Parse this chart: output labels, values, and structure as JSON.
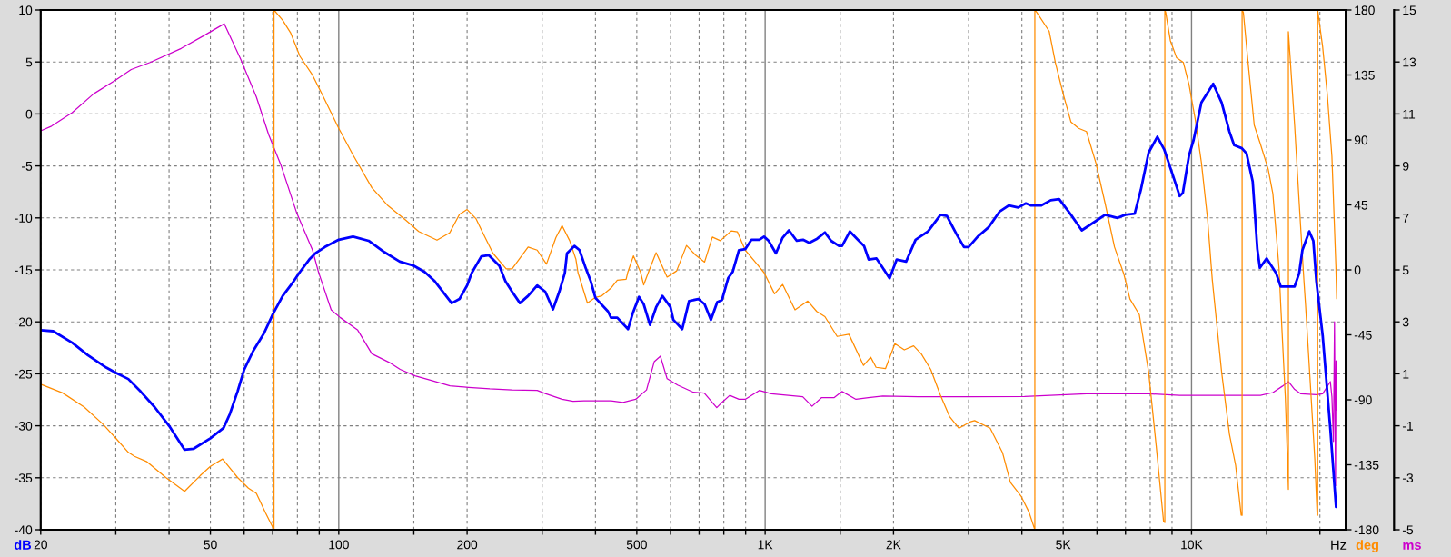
{
  "chart_data": {
    "type": "line",
    "log": "x",
    "grid": true,
    "xlim": [
      20,
      23000
    ],
    "xticks": [
      20,
      {
        "value": 30,
        "label": null
      },
      {
        "value": 40,
        "label": null
      },
      50,
      {
        "value": 60,
        "label": null
      },
      {
        "value": 70,
        "label": null
      },
      {
        "value": 80,
        "label": null
      },
      {
        "value": 90,
        "label": null
      },
      100,
      {
        "value": 150,
        "label": null
      },
      200,
      {
        "value": 300,
        "label": null
      },
      {
        "value": 400,
        "label": null
      },
      500,
      {
        "value": 600,
        "label": null
      },
      {
        "value": 700,
        "label": null
      },
      {
        "value": 800,
        "label": null
      },
      {
        "value": 900,
        "label": null
      },
      {
        "value": 1000,
        "label": "1K"
      },
      {
        "value": 1500,
        "label": null
      },
      {
        "value": 2000,
        "label": "2K"
      },
      {
        "value": 3000,
        "label": null
      },
      {
        "value": 4000,
        "label": null
      },
      {
        "value": 5000,
        "label": "5K"
      },
      {
        "value": 6000,
        "label": null
      },
      {
        "value": 7000,
        "label": null
      },
      {
        "value": 8000,
        "label": null
      },
      {
        "value": 9000,
        "label": null
      },
      {
        "value": 10000,
        "label": "10K"
      },
      {
        "value": 15000,
        "label": null
      },
      {
        "value": 20000,
        "label": null
      }
    ],
    "ylim": [
      -40,
      10
    ],
    "yticks": [
      10,
      5,
      0,
      -5,
      -10,
      -15,
      -20,
      -25,
      -30,
      -35,
      -40
    ],
    "y2lim": [
      -180,
      180
    ],
    "y2ticks": [
      180,
      135,
      90,
      45,
      0,
      -45,
      -90,
      -135,
      -180
    ],
    "y3lim": [
      -5,
      15
    ],
    "y3ticks": [
      15,
      13,
      11,
      9,
      7,
      5,
      3,
      1,
      -1,
      -3,
      -5
    ],
    "xlabel": "Hz",
    "ylabel": "dB",
    "y2label": "deg",
    "y3label": "ms",
    "series": [
      {
        "color": "#0000ff",
        "x": [
          20,
          21.4,
          23.7,
          25.8,
          28.5,
          30,
          32.1,
          34.3,
          37,
          40,
          43.5,
          45.7,
          50,
          53.7,
          55.5,
          57.9,
          60,
          63,
          66.8,
          70,
          73.9,
          78.4,
          81.1,
          85.3,
          88.2,
          92.8,
          100,
          108,
          117.5,
          128,
          139,
          150,
          159,
          168,
          184,
          192,
          200,
          205,
          216,
          225,
          238,
          246,
          255,
          266,
          278,
          292,
          305,
          318,
          329,
          339,
          343,
          357,
          367,
          380,
          390,
          400,
          428,
          435,
          450,
          477,
          489,
          506,
          519,
          537,
          555,
          574,
          600,
          609,
          639,
          663,
          697,
          721,
          746,
          772,
          792,
          819,
          839,
          868,
          898,
          929,
          969,
          994,
          1019,
          1060,
          1099,
          1137,
          1186,
          1227,
          1269,
          1324,
          1381,
          1428,
          1490,
          1515,
          1580,
          1649,
          1706,
          1749,
          1824,
          1887,
          1958,
          2035,
          2141,
          2253,
          2410,
          2578,
          2667,
          2805,
          2926,
          3000,
          3152,
          3342,
          3545,
          3727,
          3920,
          4088,
          4193,
          4445,
          4675,
          4892,
          5215,
          5528,
          5964,
          6270,
          6706,
          6992,
          7355,
          7605,
          7933,
          8314,
          8625,
          9072,
          9379,
          9541,
          9863,
          10113,
          10548,
          11241,
          11765,
          12271,
          12585,
          13121,
          13457,
          13913,
          14266,
          14462,
          15006,
          15785,
          16181,
          17448,
          17887,
          18197,
          18880,
          19300,
          19624,
          20300,
          21160,
          21820
        ],
        "values": [
          -20.8,
          -20.9,
          -22.0,
          -23.2,
          -24.4,
          -24.9,
          -25.5,
          -26.7,
          -28.2,
          -30.0,
          -32.3,
          -32.2,
          -31.2,
          -30.2,
          -28.9,
          -26.7,
          -24.6,
          -22.8,
          -21.1,
          -19.3,
          -17.5,
          -16.1,
          -15.2,
          -14.0,
          -13.4,
          -12.8,
          -12.1,
          -11.8,
          -12.2,
          -13.3,
          -14.2,
          -14.6,
          -15.2,
          -16.1,
          -18.2,
          -17.8,
          -16.5,
          -15.3,
          -13.7,
          -13.6,
          -14.6,
          -16.1,
          -17.1,
          -18.2,
          -17.5,
          -16.5,
          -17.1,
          -18.8,
          -17.1,
          -15.3,
          -13.4,
          -12.7,
          -13.1,
          -14.9,
          -16.1,
          -17.7,
          -19.0,
          -19.6,
          -19.6,
          -20.7,
          -19.2,
          -17.6,
          -18.3,
          -20.3,
          -18.6,
          -17.5,
          -18.6,
          -19.8,
          -20.7,
          -18.0,
          -17.8,
          -18.3,
          -19.8,
          -18.1,
          -17.9,
          -15.8,
          -15.2,
          -13.1,
          -13.0,
          -12.1,
          -12.1,
          -11.8,
          -12.2,
          -13.4,
          -11.9,
          -11.2,
          -12.2,
          -12.1,
          -12.4,
          -12.0,
          -11.4,
          -12.2,
          -12.7,
          -12.7,
          -11.3,
          -12.1,
          -12.7,
          -14.0,
          -13.9,
          -14.8,
          -15.8,
          -14.0,
          -14.2,
          -12.1,
          -11.3,
          -9.7,
          -9.8,
          -11.5,
          -12.8,
          -12.8,
          -11.8,
          -10.9,
          -9.4,
          -8.8,
          -9.0,
          -8.6,
          -8.8,
          -8.8,
          -8.3,
          -8.2,
          -9.7,
          -11.2,
          -10.3,
          -9.7,
          -10.0,
          -9.7,
          -9.6,
          -7.3,
          -3.7,
          -2.2,
          -3.4,
          -6.1,
          -7.9,
          -7.6,
          -4.0,
          -2.5,
          1.1,
          2.9,
          1.1,
          -1.7,
          -3.0,
          -3.3,
          -3.8,
          -6.5,
          -13.0,
          -14.8,
          -13.9,
          -15.3,
          -16.6,
          -16.6,
          -15.3,
          -13.1,
          -11.3,
          -12.2,
          -16.1,
          -21.3,
          -30.3,
          -37.8
        ]
      },
      {
        "color": "#ff8c00",
        "axis": "y2",
        "x": [
          20,
          22.5,
          25.3,
          28,
          30,
          32.1,
          33.2,
          35.5,
          39.3,
          43.5,
          47.3,
          50,
          53.4,
          57.9,
          61.4,
          64.1,
          67.4,
          70.5,
          70.5,
          73.9,
          77.1,
          81.1,
          86.8,
          91.3,
          100,
          108,
          119.6,
          130,
          144,
          154,
          170,
          182,
          192,
          200,
          210,
          215,
          230,
          247,
          255,
          278,
          292,
          307,
          323,
          334,
          348,
          360,
          364,
          383,
          400,
          414,
          435,
          450,
          472,
          476,
          491,
          510,
          519,
          532,
          555,
          589,
          620,
          654,
          686,
          721,
          752,
          785,
          833,
          861,
          898,
          951,
          994,
          1052,
          1099,
          1175,
          1259,
          1321,
          1381,
          1475,
          1572,
          1701,
          1768,
          1820,
          1915,
          2015,
          2120,
          2229,
          2325,
          2446,
          2573,
          2706,
          2848,
          3020,
          3099,
          3371,
          3604,
          3760,
          3987,
          4157,
          4290,
          4290,
          4335,
          4637,
          4793,
          5000,
          5215,
          5436,
          5670,
          5964,
          6270,
          6597,
          6936,
          7171,
          7542,
          7933,
          8268,
          8598,
          8657,
          8657,
          8698,
          8918,
          9224,
          9569,
          9863,
          10198,
          10548,
          10905,
          11187,
          11765,
          12271,
          12688,
          13074,
          13140,
          13140,
          13229,
          13570,
          14027,
          14505,
          15125,
          15516,
          16045,
          16181,
          16595,
          16817,
          16870,
          16870,
          17448,
          17887,
          18350,
          18502,
          18979,
          19456,
          19694,
          19760,
          19760,
          20300,
          20810,
          21340,
          21800,
          21900
        ],
        "values": [
          -79.2,
          -85.2,
          -95.0,
          -106.9,
          -116.6,
          -126.4,
          -129.2,
          -132.9,
          -143.8,
          -153.4,
          -142.6,
          -136.1,
          -131.0,
          -143.8,
          -151.2,
          -154.8,
          -168.5,
          -180,
          180,
          172.8,
          164.2,
          147.9,
          134.9,
          121.9,
          98.0,
          79.6,
          56.9,
          44.9,
          34.1,
          26.6,
          20.6,
          25.6,
          38.5,
          41.8,
          35.3,
          28.9,
          11.5,
          0.7,
          0.7,
          15.8,
          13.7,
          4.0,
          22.3,
          30.6,
          20.2,
          7.2,
          -1.9,
          -23.0,
          -19.1,
          -18.0,
          -12.6,
          -7.2,
          -6.5,
          -1.9,
          9.7,
          -1.4,
          -10.4,
          -1.9,
          11.9,
          -5.0,
          -0.7,
          16.9,
          10.4,
          5.4,
          22.7,
          20.2,
          27.0,
          26.3,
          13.7,
          5.0,
          -1.9,
          -16.6,
          -10.1,
          -27.7,
          -21.6,
          -28.8,
          -32.4,
          -46.1,
          -44.6,
          -66.2,
          -60.5,
          -67.5,
          -68.4,
          -51.1,
          -55.4,
          -52.6,
          -58.3,
          -69.1,
          -86.4,
          -101.5,
          -109.7,
          -105.4,
          -104.4,
          -109.7,
          -126.7,
          -147.2,
          -157.0,
          -167.8,
          -180,
          180,
          178.3,
          165.2,
          143.6,
          121.9,
          102.4,
          98.0,
          95.8,
          74.2,
          46.1,
          15.8,
          -2.8,
          -20.2,
          -31.0,
          -70.9,
          -122.8,
          -174.2,
          -175,
          180,
          178.3,
          158.8,
          146.9,
          143.6,
          128.4,
          104.5,
          74.2,
          35.1,
          -7.0,
          -70.9,
          -113.8,
          -135.4,
          -169.9,
          -170,
          180,
          178.3,
          143.6,
          100.2,
          87.2,
          69.8,
          52.6,
          0.5,
          -23.5,
          -88.6,
          -138.2,
          -152,
          165,
          100.2,
          46.1,
          -7.9,
          -23.5,
          -77.4,
          -131.0,
          -167.8,
          -170,
          180,
          154.4,
          121.9,
          78.5,
          3,
          -20
        ]
      },
      {
        "color": "#cc00cc",
        "axis": "y3",
        "x": [
          20,
          21.2,
          23.7,
          26.6,
          30,
          32.6,
          36.1,
          42.7,
          48.1,
          53.9,
          58.9,
          64.1,
          68.5,
          73.3,
          79.7,
          86.8,
          89.7,
          96,
          100.9,
          110.8,
          119.6,
          132.3,
          139.3,
          151,
          164.8,
          182.3,
          201.6,
          226,
          254.6,
          292,
          306,
          334,
          354.5,
          376,
          435,
          464,
          497,
          527,
          549.5,
          568,
          589,
          623,
          679,
          720,
          770,
          785,
          826,
          868,
          898,
          969,
          1034,
          1225,
          1288,
          1355,
          1450,
          1515,
          1633,
          1746,
          1887,
          2286,
          3000,
          4055,
          5670,
          7933,
          9379,
          14505,
          15516,
          16318,
          16870,
          17448,
          18050,
          19624,
          20300,
          21160,
          21340,
          21520,
          21640,
          21760,
          21820,
          21880
        ],
        "values": [
          10.35,
          10.53,
          11.05,
          11.77,
          12.31,
          12.71,
          12.98,
          13.52,
          14.0,
          14.47,
          13.1,
          11.65,
          10.2,
          9.0,
          7.19,
          5.76,
          4.9,
          3.46,
          3.16,
          2.68,
          1.77,
          1.41,
          1.17,
          0.92,
          0.75,
          0.54,
          0.48,
          0.42,
          0.38,
          0.36,
          0.23,
          0.02,
          -0.06,
          -0.04,
          -0.04,
          -0.1,
          0.02,
          0.38,
          1.47,
          1.68,
          0.81,
          0.57,
          0.29,
          0.26,
          -0.3,
          -0.16,
          0.17,
          0.02,
          0.02,
          0.36,
          0.23,
          0.12,
          -0.25,
          0.08,
          0.08,
          0.32,
          0.02,
          0.08,
          0.14,
          0.12,
          0.12,
          0.13,
          0.23,
          0.23,
          0.17,
          0.17,
          0.28,
          0.52,
          0.7,
          0.4,
          0.23,
          0.2,
          0.23,
          0.7,
          0.12,
          -1.6,
          3.0,
          -3.3,
          1.5,
          -0.4
        ]
      }
    ]
  }
}
